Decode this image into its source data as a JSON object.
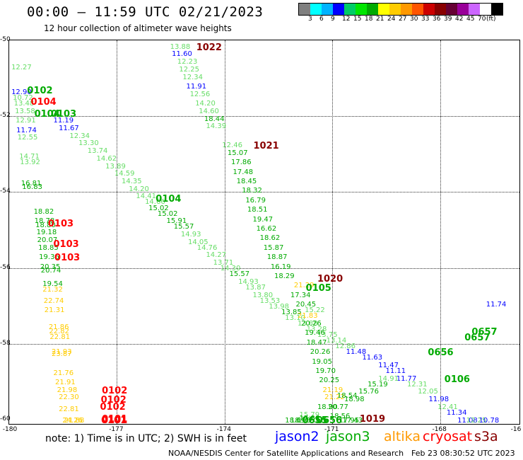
{
  "title": "00:00 – 11:59 UTC 02/21/2023",
  "subtitle": "12 hour collection of altimeter wave heights",
  "scale": {
    "colors": [
      "#7f7f7f",
      "#00ffff",
      "#00b3ff",
      "#0000ff",
      "#00cc66",
      "#00e600",
      "#00aa00",
      "#ffff00",
      "#ffcc00",
      "#ff9900",
      "#ff5500",
      "#cc0000",
      "#880000",
      "#660033",
      "#990099",
      "#cc66ff",
      "#ffffff",
      "#000000"
    ],
    "labels": [
      "3",
      "6",
      "9",
      "12",
      "15",
      "18",
      "21",
      "24",
      "27",
      "30",
      "33",
      "36",
      "39",
      "42",
      "45",
      "70",
      "(ft)"
    ]
  },
  "axes": {
    "y_ticks": [
      "-50",
      "-52",
      "-54",
      "-56",
      "-58",
      "-60"
    ],
    "x_ticks": [
      "-180",
      "-177",
      "-174",
      "-171",
      "-168",
      "-16"
    ]
  },
  "note": "note:  1) Time is in UTC;  2) SWH is in feet",
  "legend": [
    {
      "label": "jason2",
      "color": "#0000ff"
    },
    {
      "label": "jason3",
      "color": "#00aa00"
    },
    {
      "label": "altika",
      "color": "#ff9900"
    },
    {
      "label": "cryosat",
      "color": "#ff0000"
    },
    {
      "label": "s3a",
      "color": "#880000"
    }
  ],
  "credit": "NOAA/NESDIS Center for Satellite Applications and Research",
  "generated": "Feb 23 08:30:52 UTC 2023",
  "passes": [
    {
      "label": "0102",
      "color": "#00aa00",
      "lon": -179.48,
      "lat": -51.35
    },
    {
      "label": "0104",
      "color": "#ff0000",
      "lon": -179.38,
      "lat": -51.65
    },
    {
      "label": "0104",
      "color": "#00aa00",
      "lon": -179.28,
      "lat": -51.95
    },
    {
      "label": "0103",
      "color": "#00aa00",
      "lon": -178.82,
      "lat": -51.95
    },
    {
      "label": "1022",
      "color": "#880000",
      "lon": -174.77,
      "lat": -50.2
    },
    {
      "label": "1021",
      "color": "#880000",
      "lon": -173.18,
      "lat": -52.8
    },
    {
      "label": "0104",
      "color": "#00aa00",
      "lon": -175.9,
      "lat": -54.2
    },
    {
      "label": "0103",
      "color": "#ff0000",
      "lon": -178.9,
      "lat": -54.85
    },
    {
      "label": "0103",
      "color": "#ff0000",
      "lon": -178.75,
      "lat": -55.4
    },
    {
      "label": "0103",
      "color": "#ff0000",
      "lon": -178.72,
      "lat": -55.75
    },
    {
      "label": "1020",
      "color": "#880000",
      "lon": -171.4,
      "lat": -56.3
    },
    {
      "label": "0105",
      "color": "#00aa00",
      "lon": -171.72,
      "lat": -56.55
    },
    {
      "label": "0657",
      "color": "#00aa00",
      "lon": -167.1,
      "lat": -57.7
    },
    {
      "label": "0657",
      "color": "#00aa00",
      "lon": -167.3,
      "lat": -57.85
    },
    {
      "label": "0656",
      "color": "#00aa00",
      "lon": -168.32,
      "lat": -58.25
    },
    {
      "label": "0106",
      "color": "#00aa00",
      "lon": -167.86,
      "lat": -58.95
    },
    {
      "label": "0102",
      "color": "#ff0000",
      "lon": -177.4,
      "lat": -59.25
    },
    {
      "label": "0102",
      "color": "#ff0000",
      "lon": -177.43,
      "lat": -59.5
    },
    {
      "label": "0102",
      "color": "#ff0000",
      "lon": -177.45,
      "lat": -59.68
    },
    {
      "label": "0101",
      "color": "#ff0000",
      "lon": -177.4,
      "lat": -60.0
    },
    {
      "label": "0101",
      "color": "#ff0000",
      "lon": -177.42,
      "lat": -60.5
    },
    {
      "label": "0101",
      "color": "#ff0000",
      "lon": -177.4,
      "lat": -60.65
    },
    {
      "label": "1019",
      "color": "#880000",
      "lon": -170.22,
      "lat": -60.0
    },
    {
      "label": "0656",
      "color": "#00aa00",
      "lon": -171.42,
      "lat": -60.05
    },
    {
      "label": "0655",
      "color": "#00aa00",
      "lon": -171.82,
      "lat": -60.5
    }
  ],
  "observations": [
    {
      "v": "12.27",
      "c": "#66dd66",
      "lon": -179.92,
      "lat": -50.75
    },
    {
      "v": "12.90",
      "c": "#0000ff",
      "lon": -179.92,
      "lat": -51.4
    },
    {
      "v": "10.72",
      "c": "#66dd66",
      "lon": -179.88,
      "lat": -51.55
    },
    {
      "v": "13.48",
      "c": "#66dd66",
      "lon": -179.85,
      "lat": -51.7
    },
    {
      "v": "13.58",
      "c": "#66dd66",
      "lon": -179.82,
      "lat": -51.9
    },
    {
      "v": "12.91",
      "c": "#66dd66",
      "lon": -179.8,
      "lat": -52.15
    },
    {
      "v": "11.74",
      "c": "#0000ff",
      "lon": -179.78,
      "lat": -52.4
    },
    {
      "v": "12.55",
      "c": "#66dd66",
      "lon": -179.75,
      "lat": -52.6
    },
    {
      "v": "11.19",
      "c": "#0000ff",
      "lon": -178.75,
      "lat": -52.15
    },
    {
      "v": "11.67",
      "c": "#0000ff",
      "lon": -178.6,
      "lat": -52.35
    },
    {
      "v": "12.34",
      "c": "#66dd66",
      "lon": -178.3,
      "lat": -52.55
    },
    {
      "v": "13.30",
      "c": "#66dd66",
      "lon": -178.05,
      "lat": -52.75
    },
    {
      "v": "13.74",
      "c": "#66dd66",
      "lon": -177.8,
      "lat": -52.95
    },
    {
      "v": "14.62",
      "c": "#66dd66",
      "lon": -177.55,
      "lat": -53.15
    },
    {
      "v": "13.89",
      "c": "#66dd66",
      "lon": -177.3,
      "lat": -53.35
    },
    {
      "v": "14.59",
      "c": "#66dd66",
      "lon": -177.05,
      "lat": -53.55
    },
    {
      "v": "14.35",
      "c": "#66dd66",
      "lon": -176.85,
      "lat": -53.75
    },
    {
      "v": "14.20",
      "c": "#66dd66",
      "lon": -176.65,
      "lat": -53.95
    },
    {
      "v": "14.41",
      "c": "#66dd66",
      "lon": -176.45,
      "lat": -54.15
    },
    {
      "v": "14.66",
      "c": "#66dd66",
      "lon": -176.2,
      "lat": -54.3
    },
    {
      "v": "15.02",
      "c": "#00aa00",
      "lon": -176.1,
      "lat": -54.45
    },
    {
      "v": "15.02",
      "c": "#00aa00",
      "lon": -175.85,
      "lat": -54.6
    },
    {
      "v": "15.91",
      "c": "#00aa00",
      "lon": -175.6,
      "lat": -54.8
    },
    {
      "v": "15.57",
      "c": "#00aa00",
      "lon": -175.4,
      "lat": -54.95
    },
    {
      "v": "14.93",
      "c": "#66dd66",
      "lon": -175.2,
      "lat": -55.15
    },
    {
      "v": "14.05",
      "c": "#66dd66",
      "lon": -175.0,
      "lat": -55.35
    },
    {
      "v": "14.76",
      "c": "#66dd66",
      "lon": -174.75,
      "lat": -55.5
    },
    {
      "v": "14.27",
      "c": "#66dd66",
      "lon": -174.5,
      "lat": -55.7
    },
    {
      "v": "13.71",
      "c": "#66dd66",
      "lon": -174.3,
      "lat": -55.9
    },
    {
      "v": "14.30",
      "c": "#66dd66",
      "lon": -174.1,
      "lat": -56.05
    },
    {
      "v": "15.57",
      "c": "#00aa00",
      "lon": -173.85,
      "lat": -56.2
    },
    {
      "v": "14.93",
      "c": "#66dd66",
      "lon": -173.6,
      "lat": -56.4
    },
    {
      "v": "13.87",
      "c": "#66dd66",
      "lon": -173.4,
      "lat": -56.55
    },
    {
      "v": "13.80",
      "c": "#66dd66",
      "lon": -173.2,
      "lat": -56.75
    },
    {
      "v": "13.53",
      "c": "#66dd66",
      "lon": -173.0,
      "lat": -56.9
    },
    {
      "v": "13.98",
      "c": "#66dd66",
      "lon": -172.75,
      "lat": -57.05
    },
    {
      "v": "13.85",
      "c": "#00aa00",
      "lon": -172.4,
      "lat": -57.2
    },
    {
      "v": "13.10",
      "c": "#66dd66",
      "lon": -172.3,
      "lat": -57.35
    },
    {
      "v": "13.88",
      "c": "#66dd66",
      "lon": -171.95,
      "lat": -57.5
    },
    {
      "v": "13.28",
      "c": "#66dd66",
      "lon": -171.7,
      "lat": -57.65
    },
    {
      "v": "13.75",
      "c": "#66dd66",
      "lon": -171.4,
      "lat": -57.8
    },
    {
      "v": "13.14",
      "c": "#66dd66",
      "lon": -171.15,
      "lat": -57.95
    },
    {
      "v": "12.86",
      "c": "#66dd66",
      "lon": -170.9,
      "lat": -58.1
    },
    {
      "v": "11.48",
      "c": "#0000ff",
      "lon": -170.6,
      "lat": -58.25
    },
    {
      "v": "11.63",
      "c": "#0000ff",
      "lon": -170.15,
      "lat": -58.4
    },
    {
      "v": "11.47",
      "c": "#0000ff",
      "lon": -169.7,
      "lat": -58.6
    },
    {
      "v": "11.11",
      "c": "#0000ff",
      "lon": -169.5,
      "lat": -58.75
    },
    {
      "v": "11.77",
      "c": "#0000ff",
      "lon": -169.2,
      "lat": -58.95
    },
    {
      "v": "12.31",
      "c": "#66dd66",
      "lon": -168.9,
      "lat": -59.1
    },
    {
      "v": "12.05",
      "c": "#66dd66",
      "lon": -168.6,
      "lat": -59.3
    },
    {
      "v": "11.98",
      "c": "#0000ff",
      "lon": -168.3,
      "lat": -59.5
    },
    {
      "v": "12.41",
      "c": "#66dd66",
      "lon": -168.05,
      "lat": -59.7
    },
    {
      "v": "11.34",
      "c": "#0000ff",
      "lon": -167.8,
      "lat": -59.85
    },
    {
      "v": "11.08",
      "c": "#0000ff",
      "lon": -167.5,
      "lat": -60.05
    },
    {
      "v": "12.25",
      "c": "#66dd66",
      "lon": -167.25,
      "lat": -60.2
    },
    {
      "v": "10.78",
      "c": "#0000ff",
      "lon": -166.9,
      "lat": -60.4
    },
    {
      "v": "13.88",
      "c": "#66dd66",
      "lon": -175.5,
      "lat": -50.2
    },
    {
      "v": "11.60",
      "c": "#0000ff",
      "lon": -175.45,
      "lat": -50.4
    },
    {
      "v": "12.23",
      "c": "#66dd66",
      "lon": -175.3,
      "lat": -50.6
    },
    {
      "v": "12.25",
      "c": "#66dd66",
      "lon": -175.25,
      "lat": -50.8
    },
    {
      "v": "12.34",
      "c": "#66dd66",
      "lon": -175.15,
      "lat": -51.0
    },
    {
      "v": "11.91",
      "c": "#0000ff",
      "lon": -175.05,
      "lat": -51.25
    },
    {
      "v": "12.56",
      "c": "#66dd66",
      "lon": -174.95,
      "lat": -51.45
    },
    {
      "v": "14.20",
      "c": "#66dd66",
      "lon": -174.8,
      "lat": -51.7
    },
    {
      "v": "14.60",
      "c": "#66dd66",
      "lon": -174.7,
      "lat": -51.9
    },
    {
      "v": "18.44",
      "c": "#00aa00",
      "lon": -174.55,
      "lat": -52.1
    },
    {
      "v": "14.39",
      "c": "#66dd66",
      "lon": -174.5,
      "lat": -52.3
    },
    {
      "v": "12.46",
      "c": "#66dd66",
      "lon": -174.05,
      "lat": -52.8
    },
    {
      "v": "15.07",
      "c": "#00aa00",
      "lon": -173.9,
      "lat": -53.0
    },
    {
      "v": "17.86",
      "c": "#00aa00",
      "lon": -173.8,
      "lat": -53.25
    },
    {
      "v": "17.48",
      "c": "#00aa00",
      "lon": -173.75,
      "lat": -53.5
    },
    {
      "v": "18.45",
      "c": "#00aa00",
      "lon": -173.65,
      "lat": -53.75
    },
    {
      "v": "18.32",
      "c": "#00aa00",
      "lon": -173.5,
      "lat": -54.0
    },
    {
      "v": "16.79",
      "c": "#00aa00",
      "lon": -173.4,
      "lat": -54.25
    },
    {
      "v": "18.51",
      "c": "#00aa00",
      "lon": -173.35,
      "lat": -54.5
    },
    {
      "v": "19.47",
      "c": "#00aa00",
      "lon": -173.2,
      "lat": -54.75
    },
    {
      "v": "16.62",
      "c": "#00aa00",
      "lon": -173.1,
      "lat": -55.0
    },
    {
      "v": "18.62",
      "c": "#00aa00",
      "lon": -173.0,
      "lat": -55.25
    },
    {
      "v": "15.87",
      "c": "#00aa00",
      "lon": -172.9,
      "lat": -55.5
    },
    {
      "v": "18.87",
      "c": "#00aa00",
      "lon": -172.8,
      "lat": -55.75
    },
    {
      "v": "16.19",
      "c": "#00aa00",
      "lon": -172.7,
      "lat": -56.0
    },
    {
      "v": "18.29",
      "c": "#00aa00",
      "lon": -172.6,
      "lat": -56.25
    },
    {
      "v": "21.29",
      "c": "#ffcc00",
      "lon": -172.05,
      "lat": -56.5
    },
    {
      "v": "17.34",
      "c": "#00aa00",
      "lon": -172.15,
      "lat": -56.75
    },
    {
      "v": "20.45",
      "c": "#00aa00",
      "lon": -172.0,
      "lat": -57.0
    },
    {
      "v": "15.22",
      "c": "#66dd66",
      "lon": -171.75,
      "lat": -57.15
    },
    {
      "v": "21.83",
      "c": "#ffcc00",
      "lon": -171.95,
      "lat": -57.3
    },
    {
      "v": "20.26",
      "c": "#00aa00",
      "lon": -171.85,
      "lat": -57.5
    },
    {
      "v": "19.46",
      "c": "#00aa00",
      "lon": -171.75,
      "lat": -57.75
    },
    {
      "v": "18.47",
      "c": "#00aa00",
      "lon": -171.7,
      "lat": -58.0
    },
    {
      "v": "20.26",
      "c": "#00aa00",
      "lon": -171.6,
      "lat": -58.25
    },
    {
      "v": "19.05",
      "c": "#00aa00",
      "lon": -171.55,
      "lat": -58.5
    },
    {
      "v": "19.70",
      "c": "#00aa00",
      "lon": -171.45,
      "lat": -58.75
    },
    {
      "v": "20.25",
      "c": "#00aa00",
      "lon": -171.35,
      "lat": -59.0
    },
    {
      "v": "21.19",
      "c": "#ffcc00",
      "lon": -171.25,
      "lat": -59.25
    },
    {
      "v": "21.22",
      "c": "#ffcc00",
      "lon": -171.2,
      "lat": -59.45
    },
    {
      "v": "20.77",
      "c": "#00aa00",
      "lon": -171.1,
      "lat": -59.7
    },
    {
      "v": "18.90",
      "c": "#00aa00",
      "lon": -171.4,
      "lat": -59.7
    },
    {
      "v": "18.56",
      "c": "#00aa00",
      "lon": -171.05,
      "lat": -59.95
    },
    {
      "v": "17.95",
      "c": "#00aa00",
      "lon": -170.8,
      "lat": -60.25
    },
    {
      "v": "17.43",
      "c": "#00aa00",
      "lon": -170.7,
      "lat": -60.5
    },
    {
      "v": "18.54",
      "c": "#00aa00",
      "lon": -170.85,
      "lat": -59.4
    },
    {
      "v": "18.98",
      "c": "#00aa00",
      "lon": -170.65,
      "lat": -59.5
    },
    {
      "v": "15.76",
      "c": "#00aa00",
      "lon": -170.25,
      "lat": -59.3
    },
    {
      "v": "15.19",
      "c": "#00aa00",
      "lon": -170.0,
      "lat": -59.1
    },
    {
      "v": "14.91",
      "c": "#66dd66",
      "lon": -169.7,
      "lat": -58.95
    },
    {
      "v": "15.79",
      "c": "#66dd66",
      "lon": -171.9,
      "lat": -59.9
    },
    {
      "v": "18.13",
      "c": "#00aa00",
      "lon": -172.15,
      "lat": -60.25
    },
    {
      "v": "19.20",
      "c": "#00aa00",
      "lon": -171.95,
      "lat": -60.1
    },
    {
      "v": "18.69",
      "c": "#00aa00",
      "lon": -172.3,
      "lat": -60.5
    },
    {
      "v": "17.86",
      "c": "#00aa00",
      "lon": -171.9,
      "lat": -60.0
    },
    {
      "v": "11.74",
      "c": "#0000ff",
      "lon": -166.7,
      "lat": -57.0
    },
    {
      "v": "18.82",
      "c": "#00aa00",
      "lon": -179.3,
      "lat": -54.55
    },
    {
      "v": "18.78",
      "c": "#00aa00",
      "lon": -179.28,
      "lat": -54.8
    },
    {
      "v": "18.80",
      "c": "#00aa00",
      "lon": -179.25,
      "lat": -54.9
    },
    {
      "v": "19.18",
      "c": "#00aa00",
      "lon": -179.22,
      "lat": -55.1
    },
    {
      "v": "20.07",
      "c": "#00aa00",
      "lon": -179.2,
      "lat": -55.3
    },
    {
      "v": "18.85",
      "c": "#00aa00",
      "lon": -179.17,
      "lat": -55.5
    },
    {
      "v": "19.36",
      "c": "#00aa00",
      "lon": -179.15,
      "lat": -55.75
    },
    {
      "v": "20.35",
      "c": "#00aa00",
      "lon": -179.12,
      "lat": -56.0
    },
    {
      "v": "20.74",
      "c": "#00aa00",
      "lon": -179.1,
      "lat": -56.1
    },
    {
      "v": "19.54",
      "c": "#00aa00",
      "lon": -179.05,
      "lat": -56.45
    },
    {
      "v": "21.32",
      "c": "#ffcc00",
      "lon": -179.05,
      "lat": -56.6
    },
    {
      "v": "22.74",
      "c": "#ffcc00",
      "lon": -179.02,
      "lat": -56.9
    },
    {
      "v": "21.31",
      "c": "#ffcc00",
      "lon": -179.0,
      "lat": -57.15
    },
    {
      "v": "21.86",
      "c": "#ffcc00",
      "lon": -178.88,
      "lat": -57.6
    },
    {
      "v": "22.82",
      "c": "#ffcc00",
      "lon": -178.87,
      "lat": -57.7
    },
    {
      "v": "22.81",
      "c": "#ffcc00",
      "lon": -178.85,
      "lat": -57.85
    },
    {
      "v": "21.93",
      "c": "#ffcc00",
      "lon": -178.8,
      "lat": -58.25
    },
    {
      "v": "23.87",
      "c": "#ffcc00",
      "lon": -178.8,
      "lat": -58.3
    },
    {
      "v": "21.76",
      "c": "#ffcc00",
      "lon": -178.75,
      "lat": -58.8
    },
    {
      "v": "21.91",
      "c": "#ffcc00",
      "lon": -178.7,
      "lat": -59.05
    },
    {
      "v": "21.98",
      "c": "#ffcc00",
      "lon": -178.65,
      "lat": -59.25
    },
    {
      "v": "22.30",
      "c": "#ffcc00",
      "lon": -178.6,
      "lat": -59.45
    },
    {
      "v": "22.81",
      "c": "#ffcc00",
      "lon": -178.6,
      "lat": -59.75
    },
    {
      "v": "24.26",
      "c": "#ffcc00",
      "lon": -178.5,
      "lat": -60.2
    },
    {
      "v": "21.88",
      "c": "#ffcc00",
      "lon": -178.45,
      "lat": -60.35
    },
    {
      "v": "14.71",
      "c": "#66dd66",
      "lon": -179.7,
      "lat": -53.1
    },
    {
      "v": "13.92",
      "c": "#66dd66",
      "lon": -179.68,
      "lat": -53.25
    },
    {
      "v": "16.81",
      "c": "#00aa00",
      "lon": -179.65,
      "lat": -53.8
    },
    {
      "v": "16.83",
      "c": "#00aa00",
      "lon": -179.62,
      "lat": -53.9
    }
  ]
}
